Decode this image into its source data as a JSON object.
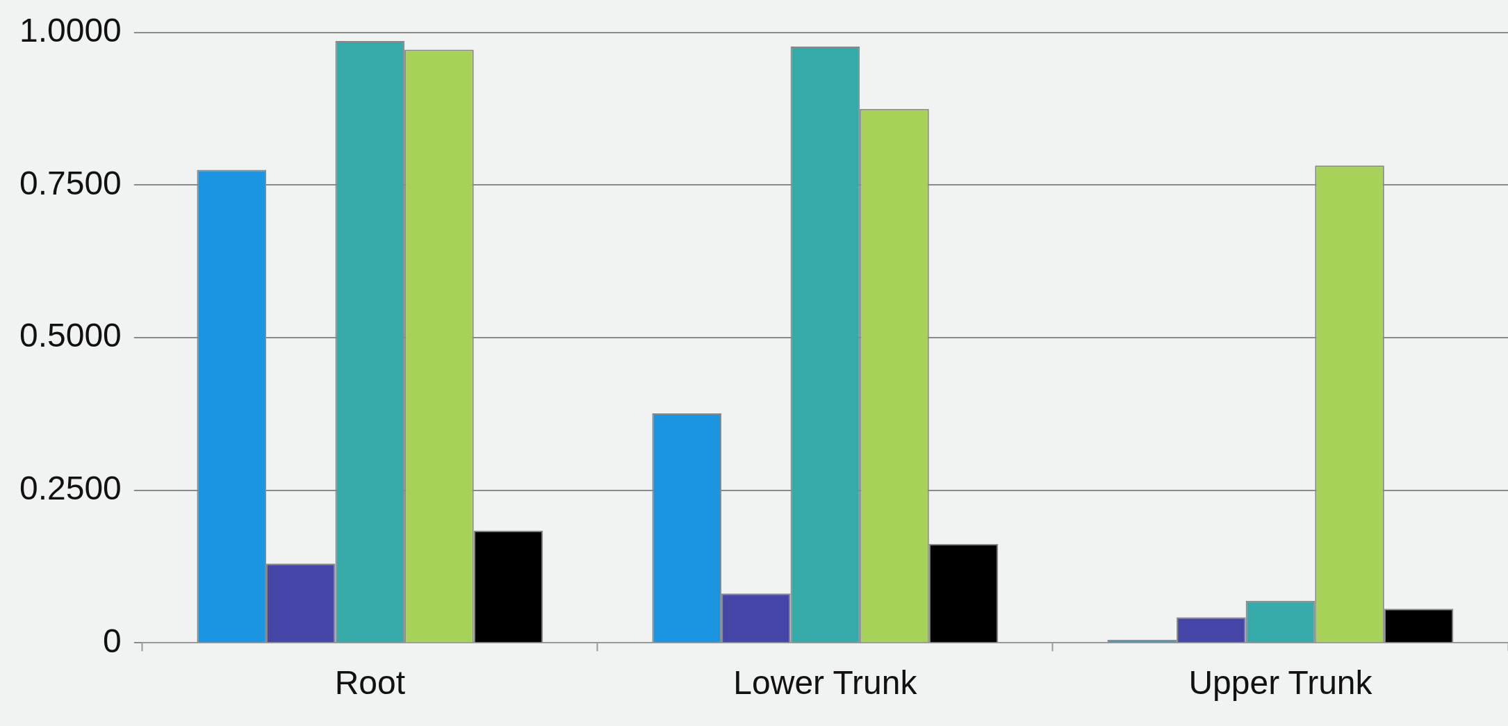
{
  "chart_data": {
    "type": "bar",
    "categories": [
      "Root",
      "Lower Trunk",
      "Upper Trunk"
    ],
    "series": [
      {
        "color": "#1b95e2",
        "values": [
          0.775,
          0.376,
          0.005
        ]
      },
      {
        "color": "#4545a8",
        "values": [
          0.13,
          0.081,
          0.042
        ]
      },
      {
        "color": "#36a9a9",
        "values": [
          0.986,
          0.977,
          0.069
        ]
      },
      {
        "color": "#a7d25a",
        "values": [
          0.972,
          0.875,
          0.782
        ]
      },
      {
        "color": "#000000",
        "values": [
          0.184,
          0.162,
          0.056
        ]
      }
    ],
    "ylim": [
      0,
      1
    ],
    "yticks": [
      {
        "value": 0,
        "label": "0"
      },
      {
        "value": 0.25,
        "label": "0.2500"
      },
      {
        "value": 0.5,
        "label": "0.5000"
      },
      {
        "value": 0.75,
        "label": "0.7500"
      },
      {
        "value": 1,
        "label": "1.0000"
      }
    ],
    "grid": "y",
    "legend": false
  }
}
